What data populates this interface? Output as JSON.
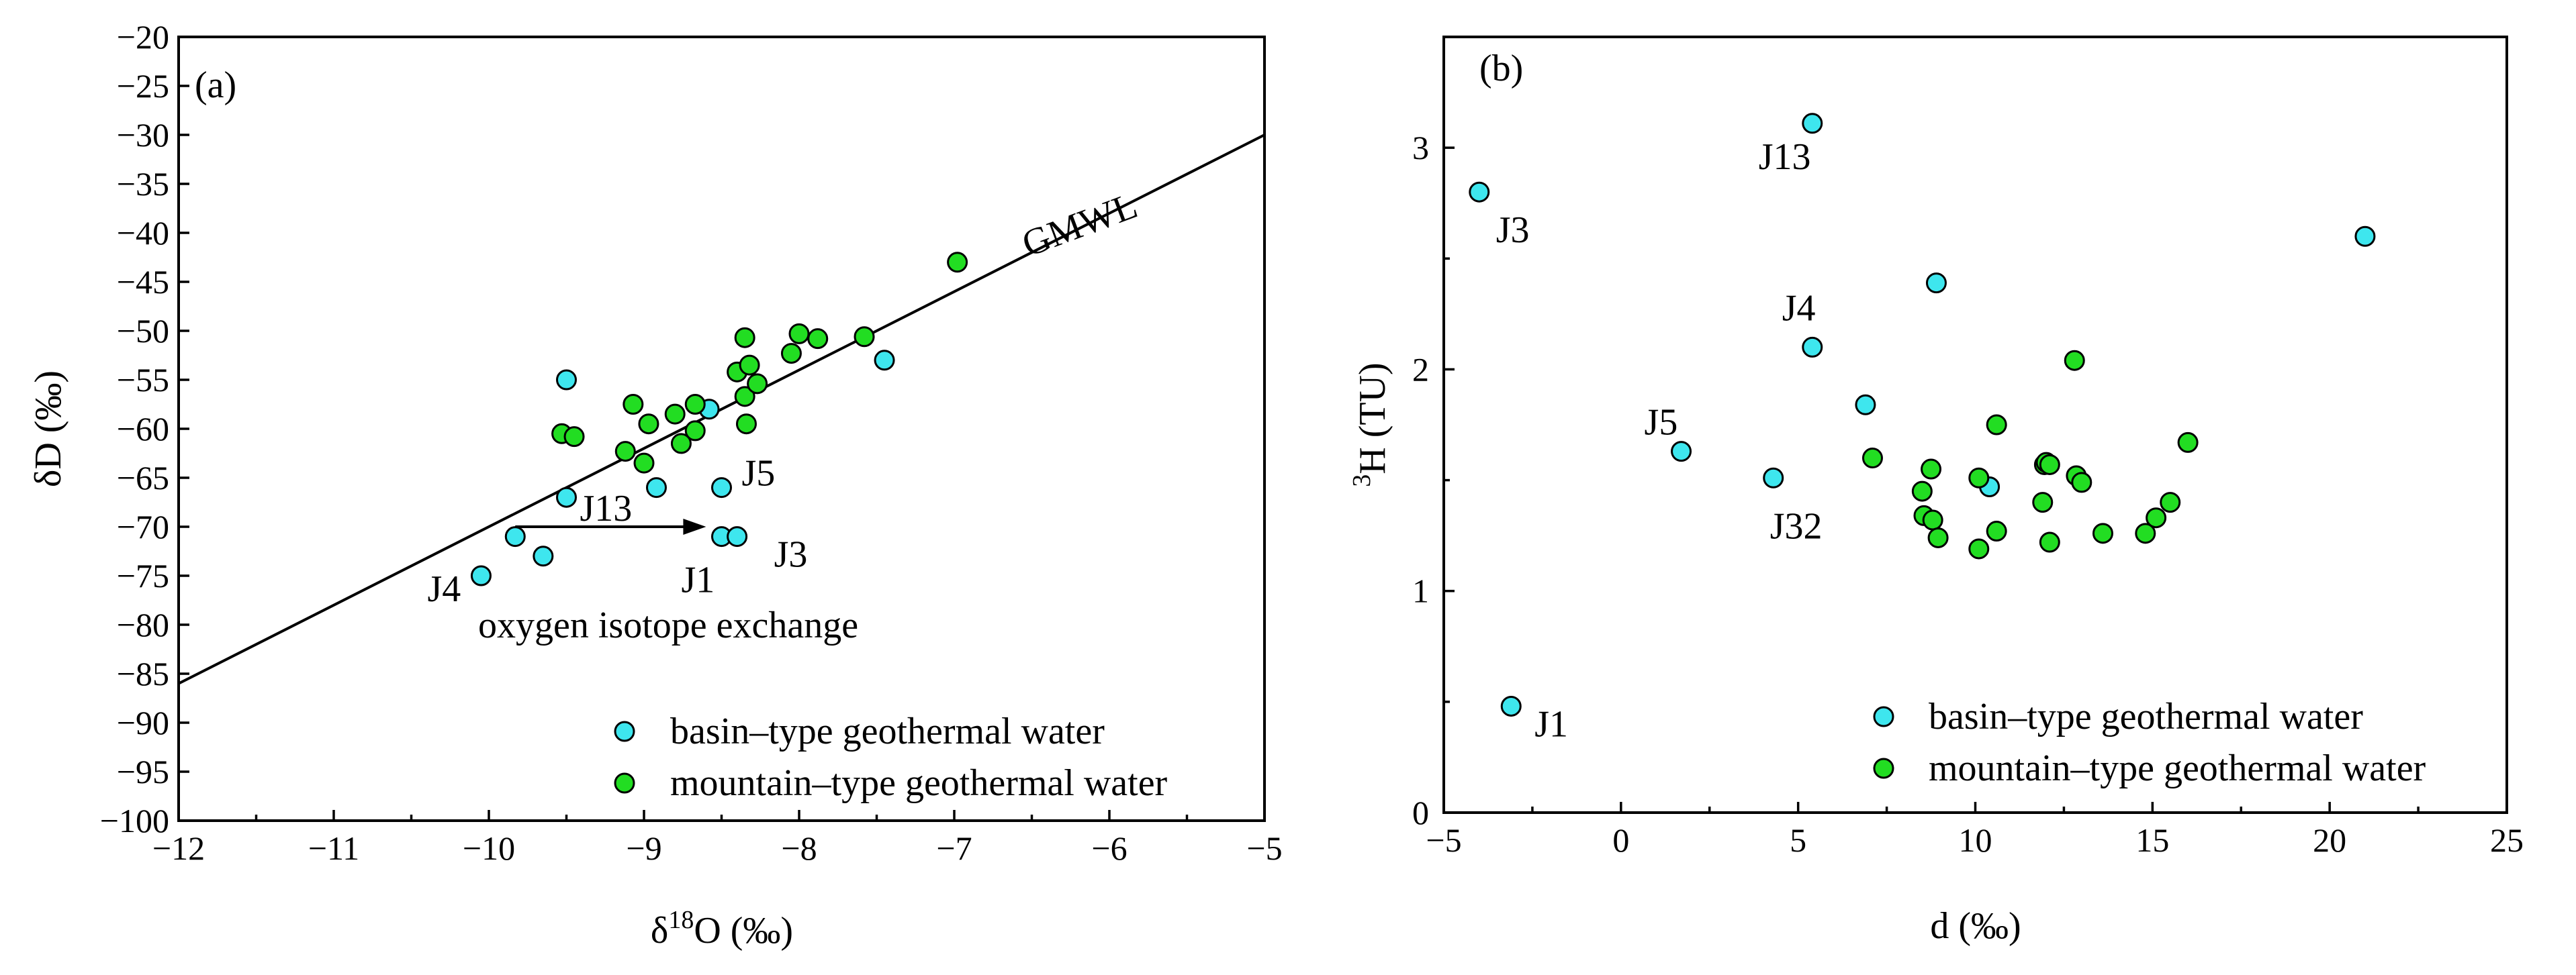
{
  "colors": {
    "basin": "#3EE6EE",
    "mountain": "#22DD22",
    "axis": "#000000"
  },
  "chart_data": [
    {
      "type": "scatter",
      "panel": "(a)",
      "xlabel": "δ18O (‰)",
      "ylabel": "δD (‰)",
      "xlim": [
        -12,
        -5
      ],
      "ylim": [
        -100,
        -20
      ],
      "xticks": [
        -12,
        -11,
        -10,
        -9,
        -8,
        -7,
        -6,
        -5
      ],
      "yticks": [
        -100,
        -95,
        -90,
        -85,
        -80,
        -75,
        -70,
        -65,
        -60,
        -55,
        -50,
        -45,
        -40,
        -35,
        -30,
        -25,
        -20
      ],
      "grid": false,
      "line": {
        "name": "GMWL",
        "slope": 8,
        "intercept": 10,
        "x": [
          -12,
          -5
        ]
      },
      "annotation_arrow": {
        "from": [
          -9.83,
          -70
        ],
        "to": [
          -8.6,
          -70
        ],
        "label": "oxygen isotope exchange"
      },
      "series": [
        {
          "name": "basin–type geothermal water",
          "points": [
            {
              "x": -10.05,
              "y": -75,
              "label": "J4"
            },
            {
              "x": -9.83,
              "y": -71
            },
            {
              "x": -9.65,
              "y": -73
            },
            {
              "x": -9.5,
              "y": -55
            },
            {
              "x": -9.5,
              "y": -67,
              "label": "J13"
            },
            {
              "x": -8.92,
              "y": -66
            },
            {
              "x": -8.58,
              "y": -58
            },
            {
              "x": -8.5,
              "y": -66,
              "label": "J5"
            },
            {
              "x": -8.5,
              "y": -71,
              "label": "J1"
            },
            {
              "x": -8.4,
              "y": -71,
              "label": "J3"
            },
            {
              "x": -7.45,
              "y": -53
            }
          ]
        },
        {
          "name": "mountain–type geothermal water",
          "points": [
            {
              "x": -9.53,
              "y": -60.5
            },
            {
              "x": -9.45,
              "y": -60.8
            },
            {
              "x": -9.12,
              "y": -62.3
            },
            {
              "x": -9.07,
              "y": -57.5
            },
            {
              "x": -9.0,
              "y": -63.5
            },
            {
              "x": -8.97,
              "y": -59.5
            },
            {
              "x": -8.8,
              "y": -58.5
            },
            {
              "x": -8.76,
              "y": -61.5
            },
            {
              "x": -8.67,
              "y": -57.5
            },
            {
              "x": -8.67,
              "y": -60.2
            },
            {
              "x": -8.4,
              "y": -54.2
            },
            {
              "x": -8.35,
              "y": -50.7
            },
            {
              "x": -8.35,
              "y": -56.7
            },
            {
              "x": -8.34,
              "y": -59.5
            },
            {
              "x": -8.32,
              "y": -53.5
            },
            {
              "x": -8.27,
              "y": -55.4
            },
            {
              "x": -8.05,
              "y": -52.3
            },
            {
              "x": -8.0,
              "y": -50.3
            },
            {
              "x": -7.88,
              "y": -50.8
            },
            {
              "x": -7.58,
              "y": -50.6
            },
            {
              "x": -6.98,
              "y": -43
            }
          ]
        }
      ],
      "legend": {
        "position": "bottom-right"
      }
    },
    {
      "type": "scatter",
      "panel": "(b)",
      "xlabel": "d (‰)",
      "ylabel": "3H (TU)",
      "xlim": [
        -5,
        25
      ],
      "ylim": [
        0,
        3.5
      ],
      "xticks": [
        -5,
        0,
        5,
        10,
        15,
        20,
        25
      ],
      "yticks": [
        0,
        1,
        2,
        3
      ],
      "grid": false,
      "series": [
        {
          "name": "basin–type geothermal water",
          "points": [
            {
              "x": -4,
              "y": 2.8,
              "label": "J3"
            },
            {
              "x": -3.1,
              "y": 0.48,
              "label": "J1"
            },
            {
              "x": 1.7,
              "y": 1.63,
              "label": "J5"
            },
            {
              "x": 4.3,
              "y": 1.51,
              "label": "J32"
            },
            {
              "x": 5.4,
              "y": 2.1,
              "label": "J4"
            },
            {
              "x": 5.4,
              "y": 3.11,
              "label": "J13"
            },
            {
              "x": 6.9,
              "y": 1.84
            },
            {
              "x": 8.9,
              "y": 2.39
            },
            {
              "x": 10.4,
              "y": 1.47
            },
            {
              "x": 21,
              "y": 2.6
            }
          ]
        },
        {
          "name": "mountain–type geothermal water",
          "points": [
            {
              "x": 7.1,
              "y": 1.6
            },
            {
              "x": 8.5,
              "y": 1.45
            },
            {
              "x": 8.55,
              "y": 1.34
            },
            {
              "x": 8.75,
              "y": 1.55
            },
            {
              "x": 8.8,
              "y": 1.32
            },
            {
              "x": 8.95,
              "y": 1.24
            },
            {
              "x": 10.1,
              "y": 1.51
            },
            {
              "x": 10.1,
              "y": 1.19
            },
            {
              "x": 10.6,
              "y": 1.27
            },
            {
              "x": 10.6,
              "y": 1.75
            },
            {
              "x": 11.9,
              "y": 1.4
            },
            {
              "x": 11.95,
              "y": 1.57
            },
            {
              "x": 12.0,
              "y": 1.58
            },
            {
              "x": 12.1,
              "y": 1.57
            },
            {
              "x": 12.1,
              "y": 1.22
            },
            {
              "x": 12.8,
              "y": 2.04
            },
            {
              "x": 12.85,
              "y": 1.52
            },
            {
              "x": 13.0,
              "y": 1.49
            },
            {
              "x": 13.6,
              "y": 1.26
            },
            {
              "x": 14.8,
              "y": 1.26
            },
            {
              "x": 15.1,
              "y": 1.33
            },
            {
              "x": 15.5,
              "y": 1.4
            },
            {
              "x": 16.0,
              "y": 1.67
            }
          ]
        }
      ],
      "legend": {
        "position": "bottom-right"
      }
    }
  ]
}
